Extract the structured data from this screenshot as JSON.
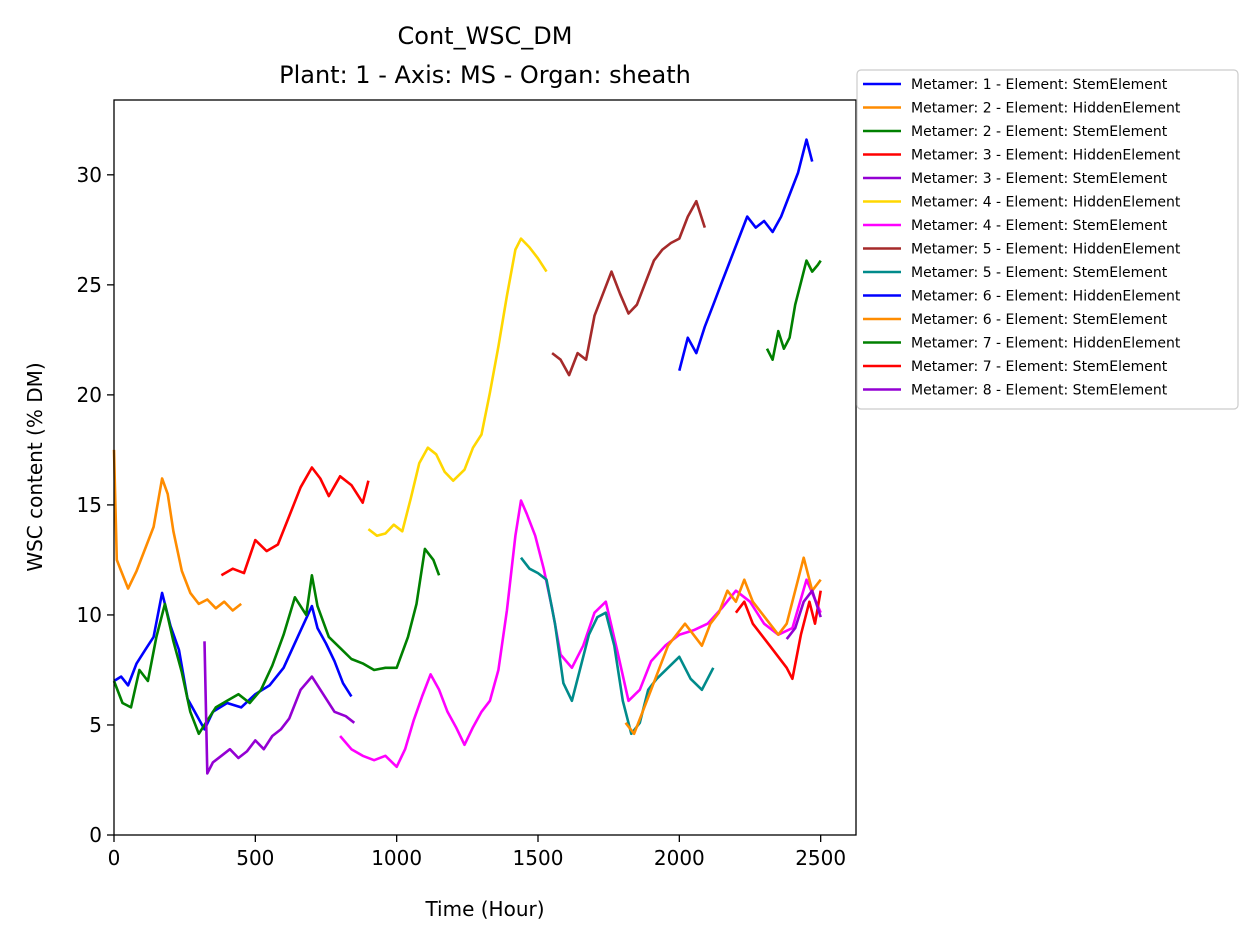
{
  "chart_data": {
    "type": "line",
    "title": "Cont_WSC_DM",
    "subtitle": "Plant: 1 - Axis: MS - Organ: sheath",
    "xlabel": "Time (Hour)",
    "ylabel": "WSC content (% DM)",
    "xlim": [
      0,
      2625
    ],
    "ylim": [
      0,
      33.4
    ],
    "xticks": [
      0,
      500,
      1000,
      1500,
      2000,
      2500
    ],
    "yticks": [
      0,
      5,
      10,
      15,
      20,
      25,
      30
    ],
    "grid": false,
    "legend_position": "outside top-right",
    "series": [
      {
        "name": "Metamer: 1 - Element: StemElement",
        "color": "#0000ff",
        "x": [
          0,
          25,
          50,
          80,
          110,
          140,
          170,
          200,
          230,
          260,
          290,
          320,
          350,
          400,
          450,
          500,
          550,
          600,
          650,
          700,
          720,
          750,
          780,
          810,
          840
        ],
        "y": [
          7.0,
          7.2,
          6.8,
          7.8,
          8.4,
          9.0,
          11.0,
          9.5,
          8.4,
          6.2,
          5.5,
          4.8,
          5.6,
          6.0,
          5.8,
          6.4,
          6.8,
          7.6,
          9.0,
          10.4,
          9.4,
          8.7,
          7.9,
          6.9,
          6.3
        ]
      },
      {
        "name": "Metamer: 2 - Element: HiddenElement",
        "color": "#ff8c00",
        "x": [
          0,
          10,
          25,
          50,
          80,
          110,
          140,
          170,
          190,
          210,
          240,
          270,
          300,
          330,
          360,
          390,
          420,
          450
        ],
        "y": [
          17.5,
          12.5,
          12.0,
          11.2,
          12.0,
          13.0,
          14.0,
          16.2,
          15.5,
          13.8,
          12.0,
          11.0,
          10.5,
          10.7,
          10.3,
          10.6,
          10.2,
          10.5
        ]
      },
      {
        "name": "Metamer: 2 - Element: StemElement",
        "color": "#008000",
        "x": [
          0,
          30,
          60,
          90,
          120,
          150,
          180,
          210,
          240,
          270,
          300,
          330,
          360,
          400,
          440,
          480,
          520,
          560,
          600,
          640,
          680,
          700,
          720,
          760,
          800,
          840,
          880,
          920,
          960,
          1000,
          1040,
          1070,
          1100,
          1130,
          1150
        ],
        "y": [
          7.0,
          6.0,
          5.8,
          7.5,
          7.0,
          9.0,
          10.5,
          8.8,
          7.4,
          5.6,
          4.6,
          5.2,
          5.8,
          6.1,
          6.4,
          6.0,
          6.6,
          7.7,
          9.1,
          10.8,
          10.0,
          11.8,
          10.4,
          9.0,
          8.5,
          8.0,
          7.8,
          7.5,
          7.6,
          7.6,
          9.0,
          10.5,
          13.0,
          12.5,
          11.8
        ]
      },
      {
        "name": "Metamer: 3 - Element: HiddenElement",
        "color": "#ff0000",
        "x": [
          380,
          420,
          460,
          500,
          540,
          580,
          620,
          660,
          700,
          730,
          760,
          800,
          840,
          880,
          900
        ],
        "y": [
          11.8,
          12.1,
          11.9,
          13.4,
          12.9,
          13.2,
          14.5,
          15.8,
          16.7,
          16.2,
          15.4,
          16.3,
          15.9,
          15.1,
          16.1
        ]
      },
      {
        "name": "Metamer: 3 - Element: StemElement",
        "color": "#9400d3",
        "x": [
          320,
          330,
          350,
          380,
          410,
          440,
          470,
          500,
          530,
          560,
          590,
          620,
          660,
          700,
          740,
          780,
          820,
          850
        ],
        "y": [
          8.8,
          2.8,
          3.3,
          3.6,
          3.9,
          3.5,
          3.8,
          4.3,
          3.9,
          4.5,
          4.8,
          5.3,
          6.6,
          7.2,
          6.4,
          5.6,
          5.4,
          5.1
        ]
      },
      {
        "name": "Metamer: 4 - Element: HiddenElement",
        "color": "#ffd700",
        "x": [
          900,
          930,
          960,
          990,
          1020,
          1050,
          1080,
          1110,
          1140,
          1170,
          1200,
          1240,
          1270,
          1300,
          1330,
          1360,
          1390,
          1420,
          1440,
          1470,
          1500,
          1530
        ],
        "y": [
          13.9,
          13.6,
          13.7,
          14.1,
          13.8,
          15.3,
          16.9,
          17.6,
          17.3,
          16.5,
          16.1,
          16.6,
          17.6,
          18.2,
          20.1,
          22.2,
          24.5,
          26.6,
          27.1,
          26.7,
          26.2,
          25.6
        ]
      },
      {
        "name": "Metamer: 4 - Element: StemElement",
        "color": "#ff00ff",
        "x": [
          800,
          840,
          880,
          920,
          960,
          1000,
          1030,
          1060,
          1090,
          1120,
          1150,
          1180,
          1210,
          1240,
          1270,
          1300,
          1330,
          1360,
          1390,
          1420,
          1440,
          1460,
          1490,
          1520,
          1550,
          1580,
          1620,
          1660,
          1700,
          1740,
          1780,
          1820,
          1860,
          1900,
          1950,
          2000,
          2050,
          2100,
          2150,
          2200,
          2250,
          2300,
          2350,
          2400,
          2450,
          2500
        ],
        "y": [
          4.5,
          3.9,
          3.6,
          3.4,
          3.6,
          3.1,
          3.9,
          5.2,
          6.3,
          7.3,
          6.6,
          5.6,
          4.9,
          4.1,
          4.9,
          5.6,
          6.1,
          7.5,
          10.2,
          13.6,
          15.2,
          14.6,
          13.6,
          12.1,
          10.3,
          8.2,
          7.6,
          8.6,
          10.1,
          10.6,
          8.4,
          6.1,
          6.6,
          7.9,
          8.6,
          9.1,
          9.3,
          9.6,
          10.3,
          11.1,
          10.6,
          9.6,
          9.1,
          9.4,
          11.6,
          10.1
        ]
      },
      {
        "name": "Metamer: 5 - Element: HiddenElement",
        "color": "#a52a2a",
        "x": [
          1550,
          1580,
          1610,
          1640,
          1670,
          1700,
          1730,
          1760,
          1790,
          1820,
          1850,
          1880,
          1910,
          1940,
          1970,
          2000,
          2030,
          2060,
          2090
        ],
        "y": [
          21.9,
          21.6,
          20.9,
          21.9,
          21.6,
          23.6,
          24.6,
          25.6,
          24.6,
          23.7,
          24.1,
          25.1,
          26.1,
          26.6,
          26.9,
          27.1,
          28.1,
          28.8,
          27.6
        ]
      },
      {
        "name": "Metamer: 5 - Element: StemElement",
        "color": "#008b8b",
        "x": [
          1440,
          1470,
          1500,
          1530,
          1560,
          1590,
          1620,
          1650,
          1680,
          1710,
          1740,
          1770,
          1800,
          1830,
          1860,
          1890,
          1920,
          1960,
          2000,
          2040,
          2080,
          2120
        ],
        "y": [
          12.6,
          12.1,
          11.9,
          11.6,
          9.6,
          6.9,
          6.1,
          7.6,
          9.1,
          9.9,
          10.1,
          8.6,
          6.1,
          4.6,
          5.1,
          6.6,
          7.1,
          7.6,
          8.1,
          7.1,
          6.6,
          7.6
        ]
      },
      {
        "name": "Metamer: 6 - Element: HiddenElement",
        "color": "#0000ff",
        "x": [
          2000,
          2030,
          2060,
          2090,
          2120,
          2150,
          2180,
          2210,
          2240,
          2270,
          2300,
          2330,
          2360,
          2390,
          2420,
          2450,
          2470
        ],
        "y": [
          21.1,
          22.6,
          21.9,
          23.1,
          24.1,
          25.1,
          26.1,
          27.1,
          28.1,
          27.6,
          27.9,
          27.4,
          28.1,
          29.1,
          30.1,
          31.6,
          30.6
        ]
      },
      {
        "name": "Metamer: 6 - Element: StemElement",
        "color": "#ff8c00",
        "x": [
          1810,
          1840,
          1870,
          1900,
          1930,
          1960,
          1990,
          2020,
          2050,
          2080,
          2110,
          2140,
          2170,
          2200,
          2230,
          2260,
          2290,
          2320,
          2350,
          2380,
          2410,
          2440,
          2470,
          2500
        ],
        "y": [
          5.1,
          4.6,
          5.6,
          6.6,
          7.6,
          8.6,
          9.1,
          9.6,
          9.1,
          8.6,
          9.6,
          10.1,
          11.1,
          10.6,
          11.6,
          10.6,
          10.1,
          9.6,
          9.1,
          9.6,
          11.1,
          12.6,
          11.1,
          11.6
        ]
      },
      {
        "name": "Metamer: 7 - Element: HiddenElement",
        "color": "#008000",
        "x": [
          2310,
          2330,
          2350,
          2370,
          2390,
          2410,
          2430,
          2450,
          2470,
          2490,
          2500
        ],
        "y": [
          22.1,
          21.6,
          22.9,
          22.1,
          22.6,
          24.1,
          25.1,
          26.1,
          25.6,
          25.9,
          26.1
        ]
      },
      {
        "name": "Metamer: 7 - Element: StemElement",
        "color": "#ff0000",
        "x": [
          2200,
          2230,
          2260,
          2290,
          2320,
          2350,
          2380,
          2400,
          2430,
          2460,
          2480,
          2500
        ],
        "y": [
          10.1,
          10.6,
          9.6,
          9.1,
          8.6,
          8.1,
          7.6,
          7.1,
          9.1,
          10.6,
          9.6,
          11.1
        ]
      },
      {
        "name": "Metamer: 8 - Element: StemElement",
        "color": "#9400d3",
        "x": [
          2380,
          2410,
          2440,
          2470,
          2500
        ],
        "y": [
          8.9,
          9.4,
          10.6,
          11.1,
          9.9
        ]
      }
    ]
  }
}
